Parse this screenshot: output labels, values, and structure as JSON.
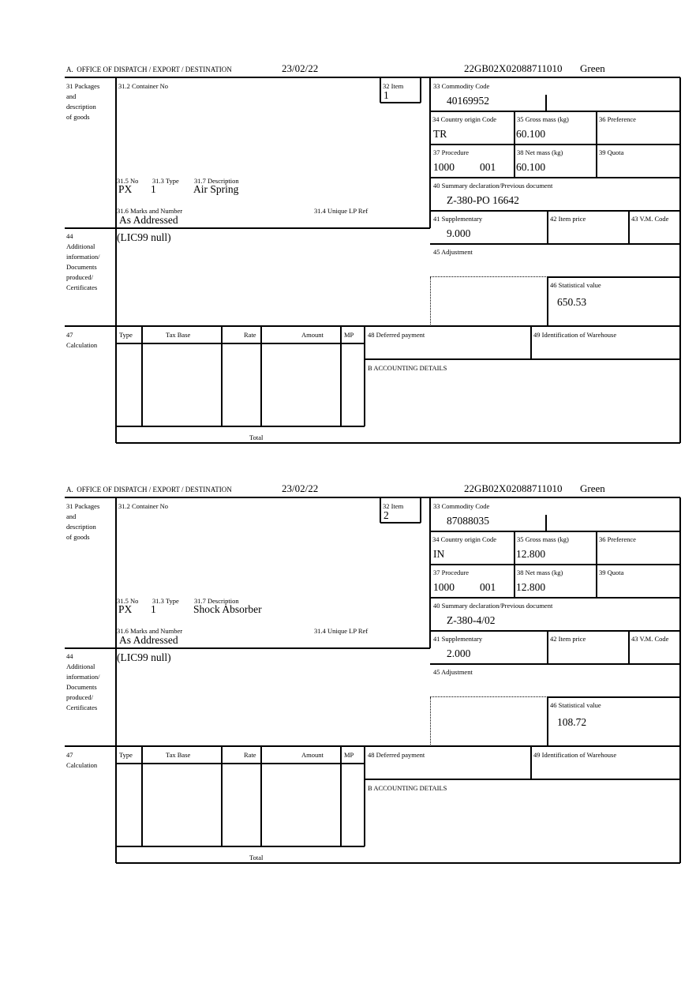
{
  "labels": {
    "header_office": "A.  OFFICE OF DISPATCH / EXPORT / DESTINATION",
    "box31": "31 Packages\nand\ndescription\nof goods",
    "box31_2": "31.2 Container No",
    "box32": "32 Item",
    "box33": "33 Commodity Code",
    "box34": "34 Country origin Code",
    "box35": "35 Gross mass (kg)",
    "box36": "36 Preference",
    "box37": "37 Procedure",
    "box38": "38 Net mass (kg)",
    "box39": "39 Quota",
    "box40": "40 Summary declaration/Previous document",
    "box41": "41 Supplementary",
    "box42": "42 Item price",
    "box43": "43 V.M. Code",
    "box45": "45 Adjustment",
    "box46": "46 Statistical value",
    "box31_5": "31.5 No",
    "box31_3": "31.3 Type",
    "box31_7": "31.7 Description",
    "box31_6": "31.6 Marks and Number",
    "box31_4": "31.4 Unique LP Ref",
    "box44": "44\nAdditional\ninformation/\nDocuments\nproduced/\nCertificates",
    "box47": "47\nCalculation",
    "calc_type": "Type",
    "calc_tax_base": "Tax Base",
    "calc_rate": "Rate",
    "calc_amount": "Amount",
    "calc_mp": "MP",
    "box48": "48 Deferred payment",
    "box49": "49 Identification of Warehouse",
    "boxB": "B ACCOUNTING DETAILS",
    "total": "Total"
  },
  "forms": [
    {
      "date": "23/02/22",
      "reference": "22GB02X02088711010",
      "route": "Green",
      "item": "1",
      "commodity_code": "40169952",
      "country_origin": "TR",
      "gross_mass": "60.100",
      "procedure": "1000",
      "procedure_additional": "001",
      "net_mass": "60.100",
      "previous_document": "Z-380-PO 16642",
      "supplementary": "9.000",
      "statistical_value": "650.53",
      "package_kind": "PX",
      "package_count": "1",
      "description": "Air Spring",
      "marks": "As Addressed",
      "additional_info": "(LIC99 null)"
    },
    {
      "date": "23/02/22",
      "reference": "22GB02X02088711010",
      "route": "Green",
      "item": "2",
      "commodity_code": "87088035",
      "country_origin": "IN",
      "gross_mass": "12.800",
      "procedure": "1000",
      "procedure_additional": "001",
      "net_mass": "12.800",
      "previous_document": "Z-380-4/02",
      "supplementary": "2.000",
      "statistical_value": "108.72",
      "package_kind": "PX",
      "package_count": "1",
      "description": "Shock Absorber",
      "marks": "As Addressed",
      "additional_info": "(LIC99 null)"
    }
  ]
}
